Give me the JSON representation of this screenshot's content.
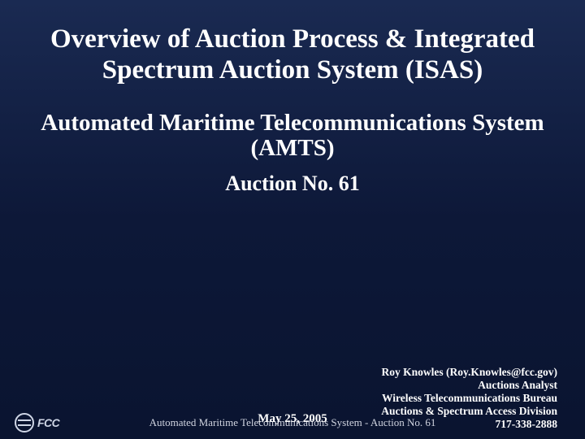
{
  "title": "Overview of Auction Process & Integrated Spectrum Auction System (ISAS)",
  "subtitle1": "Automated Maritime Telecommunications System (AMTS)",
  "subtitle2": "Auction No. 61",
  "contact": {
    "line1": "Roy Knowles (Roy.Knowles@fcc.gov)",
    "line2": "Auctions Analyst",
    "line3": "Wireless Telecommunications Bureau",
    "line4": "Auctions & Spectrum Access Division",
    "line5": "717-338-2888"
  },
  "date": "May 25, 2005",
  "footer": "Automated Maritime Telecommunications System - Auction No. 61",
  "logo_text": "FCC",
  "colors": {
    "bg_top": "#1a2a52",
    "bg_mid": "#0d1838",
    "bg_bot": "#0a1430",
    "text": "#ffffff",
    "footer_text": "#d0d4e0",
    "logo": "#cfd6e6"
  }
}
